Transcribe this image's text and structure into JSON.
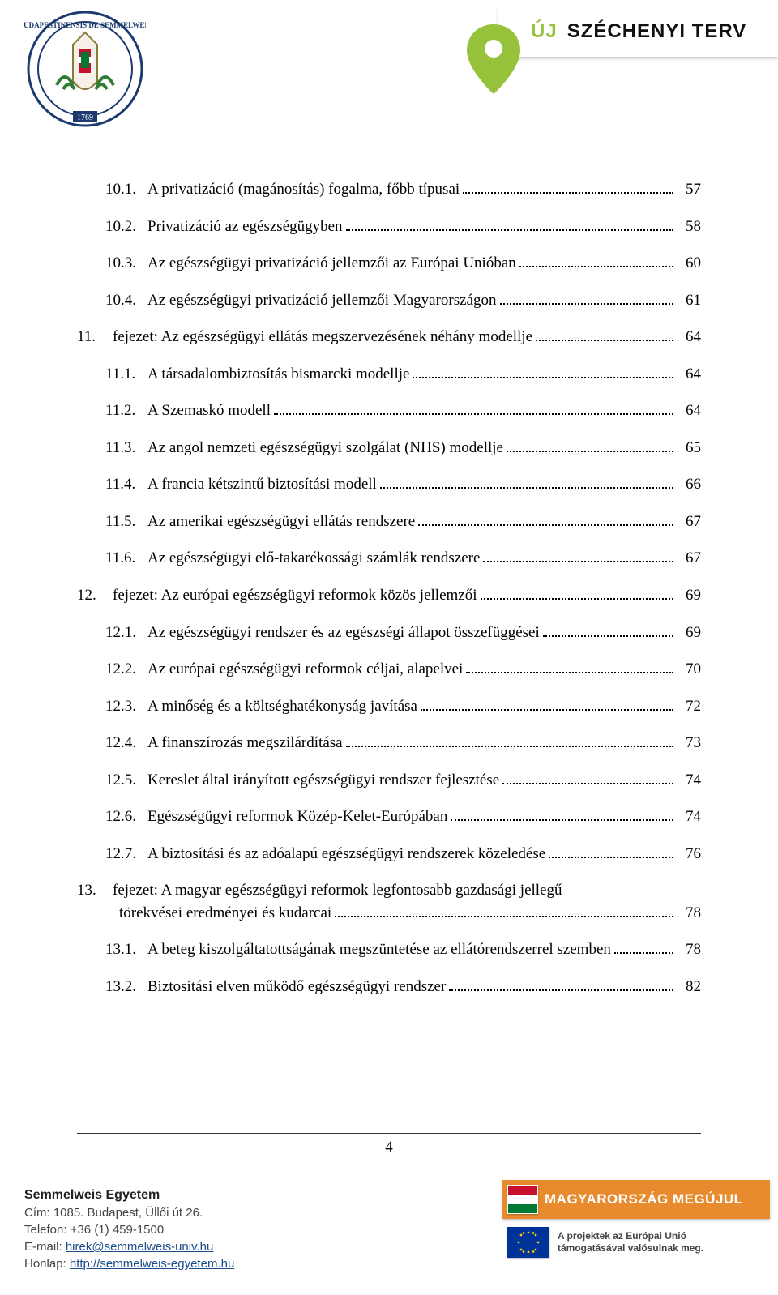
{
  "header": {
    "badge_uj": "ÚJ",
    "badge_terv": "SZÉCHENYI TERV"
  },
  "toc": [
    {
      "level": 1,
      "num": "10.1.",
      "title": "A privatizáció (magánosítás) fogalma, főbb típusai",
      "page": "57"
    },
    {
      "level": 1,
      "num": "10.2.",
      "title": "Privatizáció az egészségügyben",
      "page": "58"
    },
    {
      "level": 1,
      "num": "10.3.",
      "title": "Az egészségügyi privatizáció jellemzői az Európai Unióban",
      "page": "60"
    },
    {
      "level": 1,
      "num": "10.4.",
      "title": "Az egészségügyi privatizáció jellemzői Magyarországon",
      "page": "61"
    },
    {
      "level": 0,
      "num": "11.",
      "title": "fejezet: Az egészségügyi ellátás megszervezésének néhány modellje",
      "page": "64"
    },
    {
      "level": 1,
      "num": "11.1.",
      "title": "A társadalombiztosítás bismarcki modellje",
      "page": "64"
    },
    {
      "level": 1,
      "num": "11.2.",
      "title": "A Szemaskó modell",
      "page": "64"
    },
    {
      "level": 1,
      "num": "11.3.",
      "title": "Az angol nemzeti egészségügyi szolgálat (NHS) modellje",
      "page": "65"
    },
    {
      "level": 1,
      "num": "11.4.",
      "title": "A francia kétszintű biztosítási modell",
      "page": "66"
    },
    {
      "level": 1,
      "num": "11.5.",
      "title": "Az amerikai egészségügyi ellátás rendszere",
      "page": "67"
    },
    {
      "level": 1,
      "num": "11.6.",
      "title": "Az egészségügyi elő-takarékossági számlák rendszere",
      "page": "67"
    },
    {
      "level": 0,
      "num": "12.",
      "title": "fejezet: Az európai egészségügyi reformok közös jellemzői",
      "page": "69"
    },
    {
      "level": 1,
      "num": "12.1.",
      "title": "Az egészségügyi rendszer és az egészségi állapot összefüggései",
      "page": "69"
    },
    {
      "level": 1,
      "num": "12.2.",
      "title": "Az európai egészségügyi reformok céljai, alapelvei",
      "page": "70"
    },
    {
      "level": 1,
      "num": "12.3.",
      "title": "A minőség és a költséghatékonyság javítása",
      "page": "72"
    },
    {
      "level": 1,
      "num": "12.4.",
      "title": "A finanszírozás megszilárdítása",
      "page": "73"
    },
    {
      "level": 1,
      "num": "12.5.",
      "title": "Kereslet által irányított egészségügyi rendszer fejlesztése",
      "page": "74"
    },
    {
      "level": 1,
      "num": "12.6.",
      "title": "Egészségügyi reformok Közép-Kelet-Európában",
      "page": "74"
    },
    {
      "level": 1,
      "num": "12.7.",
      "title": "A biztosítási és az adóalapú egészségügyi rendszerek közeledése",
      "page": "76"
    },
    {
      "level": 0,
      "num": "13.",
      "title_l1": "fejezet: A magyar egészségügyi reformok legfontosabb gazdasági jellegű",
      "title_l2": "törekvései eredményei és kudarcai",
      "page": "78",
      "wrap": true
    },
    {
      "level": 1,
      "num": "13.1.",
      "title": "A beteg kiszolgáltatottságának megszüntetése az ellátórendszerrel szemben",
      "page": "78"
    },
    {
      "level": 1,
      "num": "13.2.",
      "title": "Biztosítási elven működő egészségügyi rendszer",
      "page": "82"
    }
  ],
  "footer": {
    "page_number": "4",
    "university": "Semmelweis Egyetem",
    "address": "Cím: 1085. Budapest, Üllői út 26.",
    "phone": "Telefon: +36 (1) 459-1500",
    "email_label": "E-mail:",
    "email": "hirek@semmelweis-univ.hu",
    "web_label": "Honlap:",
    "web": "http://semmelweis-egyetem.hu",
    "megujul": "MAGYARORSZÁG MEGÚJUL",
    "eu_line1": "A projektek az Európai Unió",
    "eu_line2": "támogatásával valósulnak meg."
  },
  "colors": {
    "green": "#97c33c",
    "orange": "#e88b2e",
    "eu_blue": "#003399",
    "link": "#1a4b8a"
  }
}
